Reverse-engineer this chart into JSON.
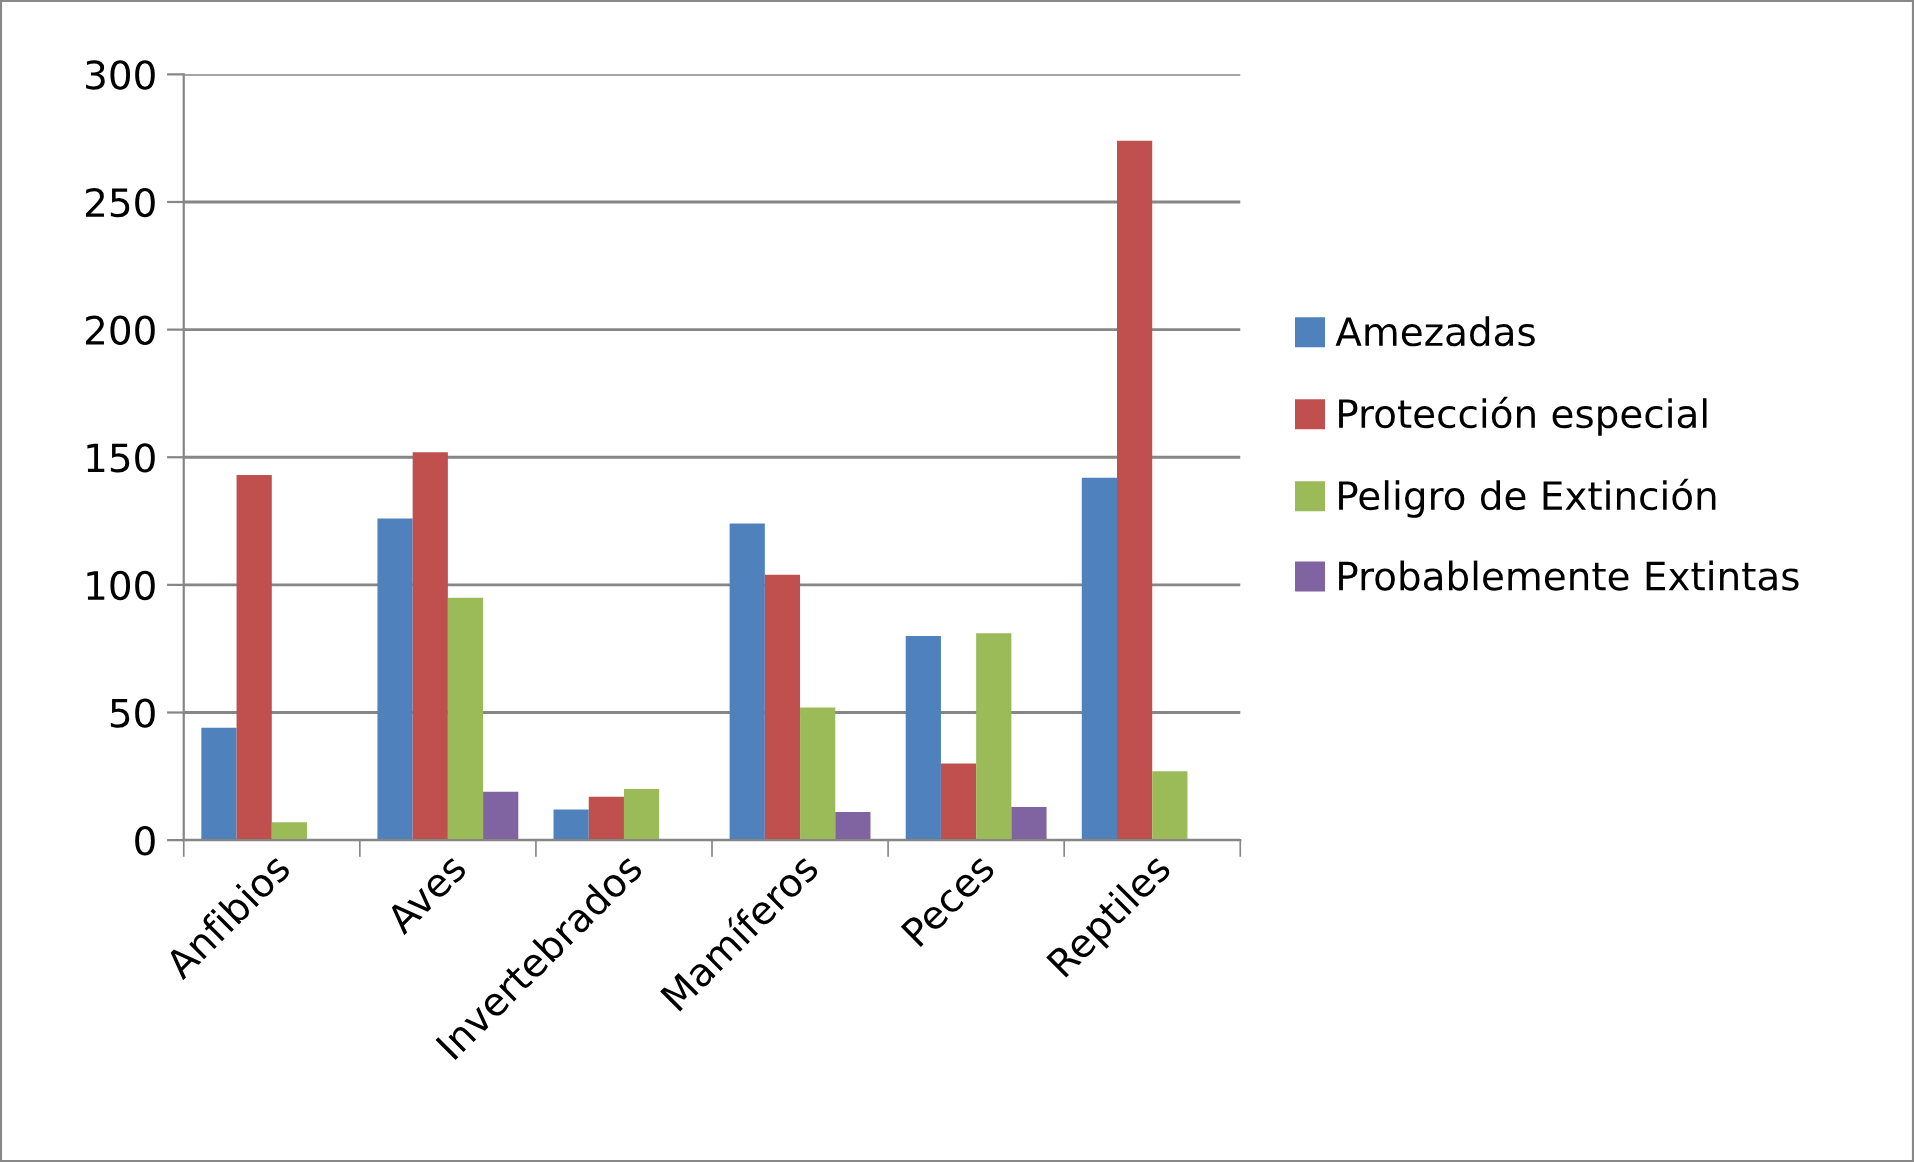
{
  "chart_data": {
    "type": "bar",
    "categories": [
      "Anfibios",
      "Aves",
      "Invertebrados",
      "Mamíferos",
      "Peces",
      "Reptiles"
    ],
    "series": [
      {
        "name": "Amezadas",
        "color": "#4f81bd",
        "values": [
          44,
          126,
          12,
          124,
          80,
          142
        ]
      },
      {
        "name": "Protección especial",
        "color": "#c0504d",
        "values": [
          143,
          152,
          17,
          104,
          30,
          274
        ]
      },
      {
        "name": "Peligro de Extinción",
        "color": "#9bbb59",
        "values": [
          7,
          95,
          20,
          52,
          81,
          27
        ]
      },
      {
        "name": "Probablemente Extintas",
        "color": "#8064a2",
        "values": [
          null,
          19,
          null,
          11,
          13,
          null
        ]
      }
    ],
    "ylim": [
      0,
      300
    ],
    "yticks": [
      0,
      50,
      100,
      150,
      200,
      250,
      300
    ],
    "grid": "y",
    "legend": "right"
  }
}
